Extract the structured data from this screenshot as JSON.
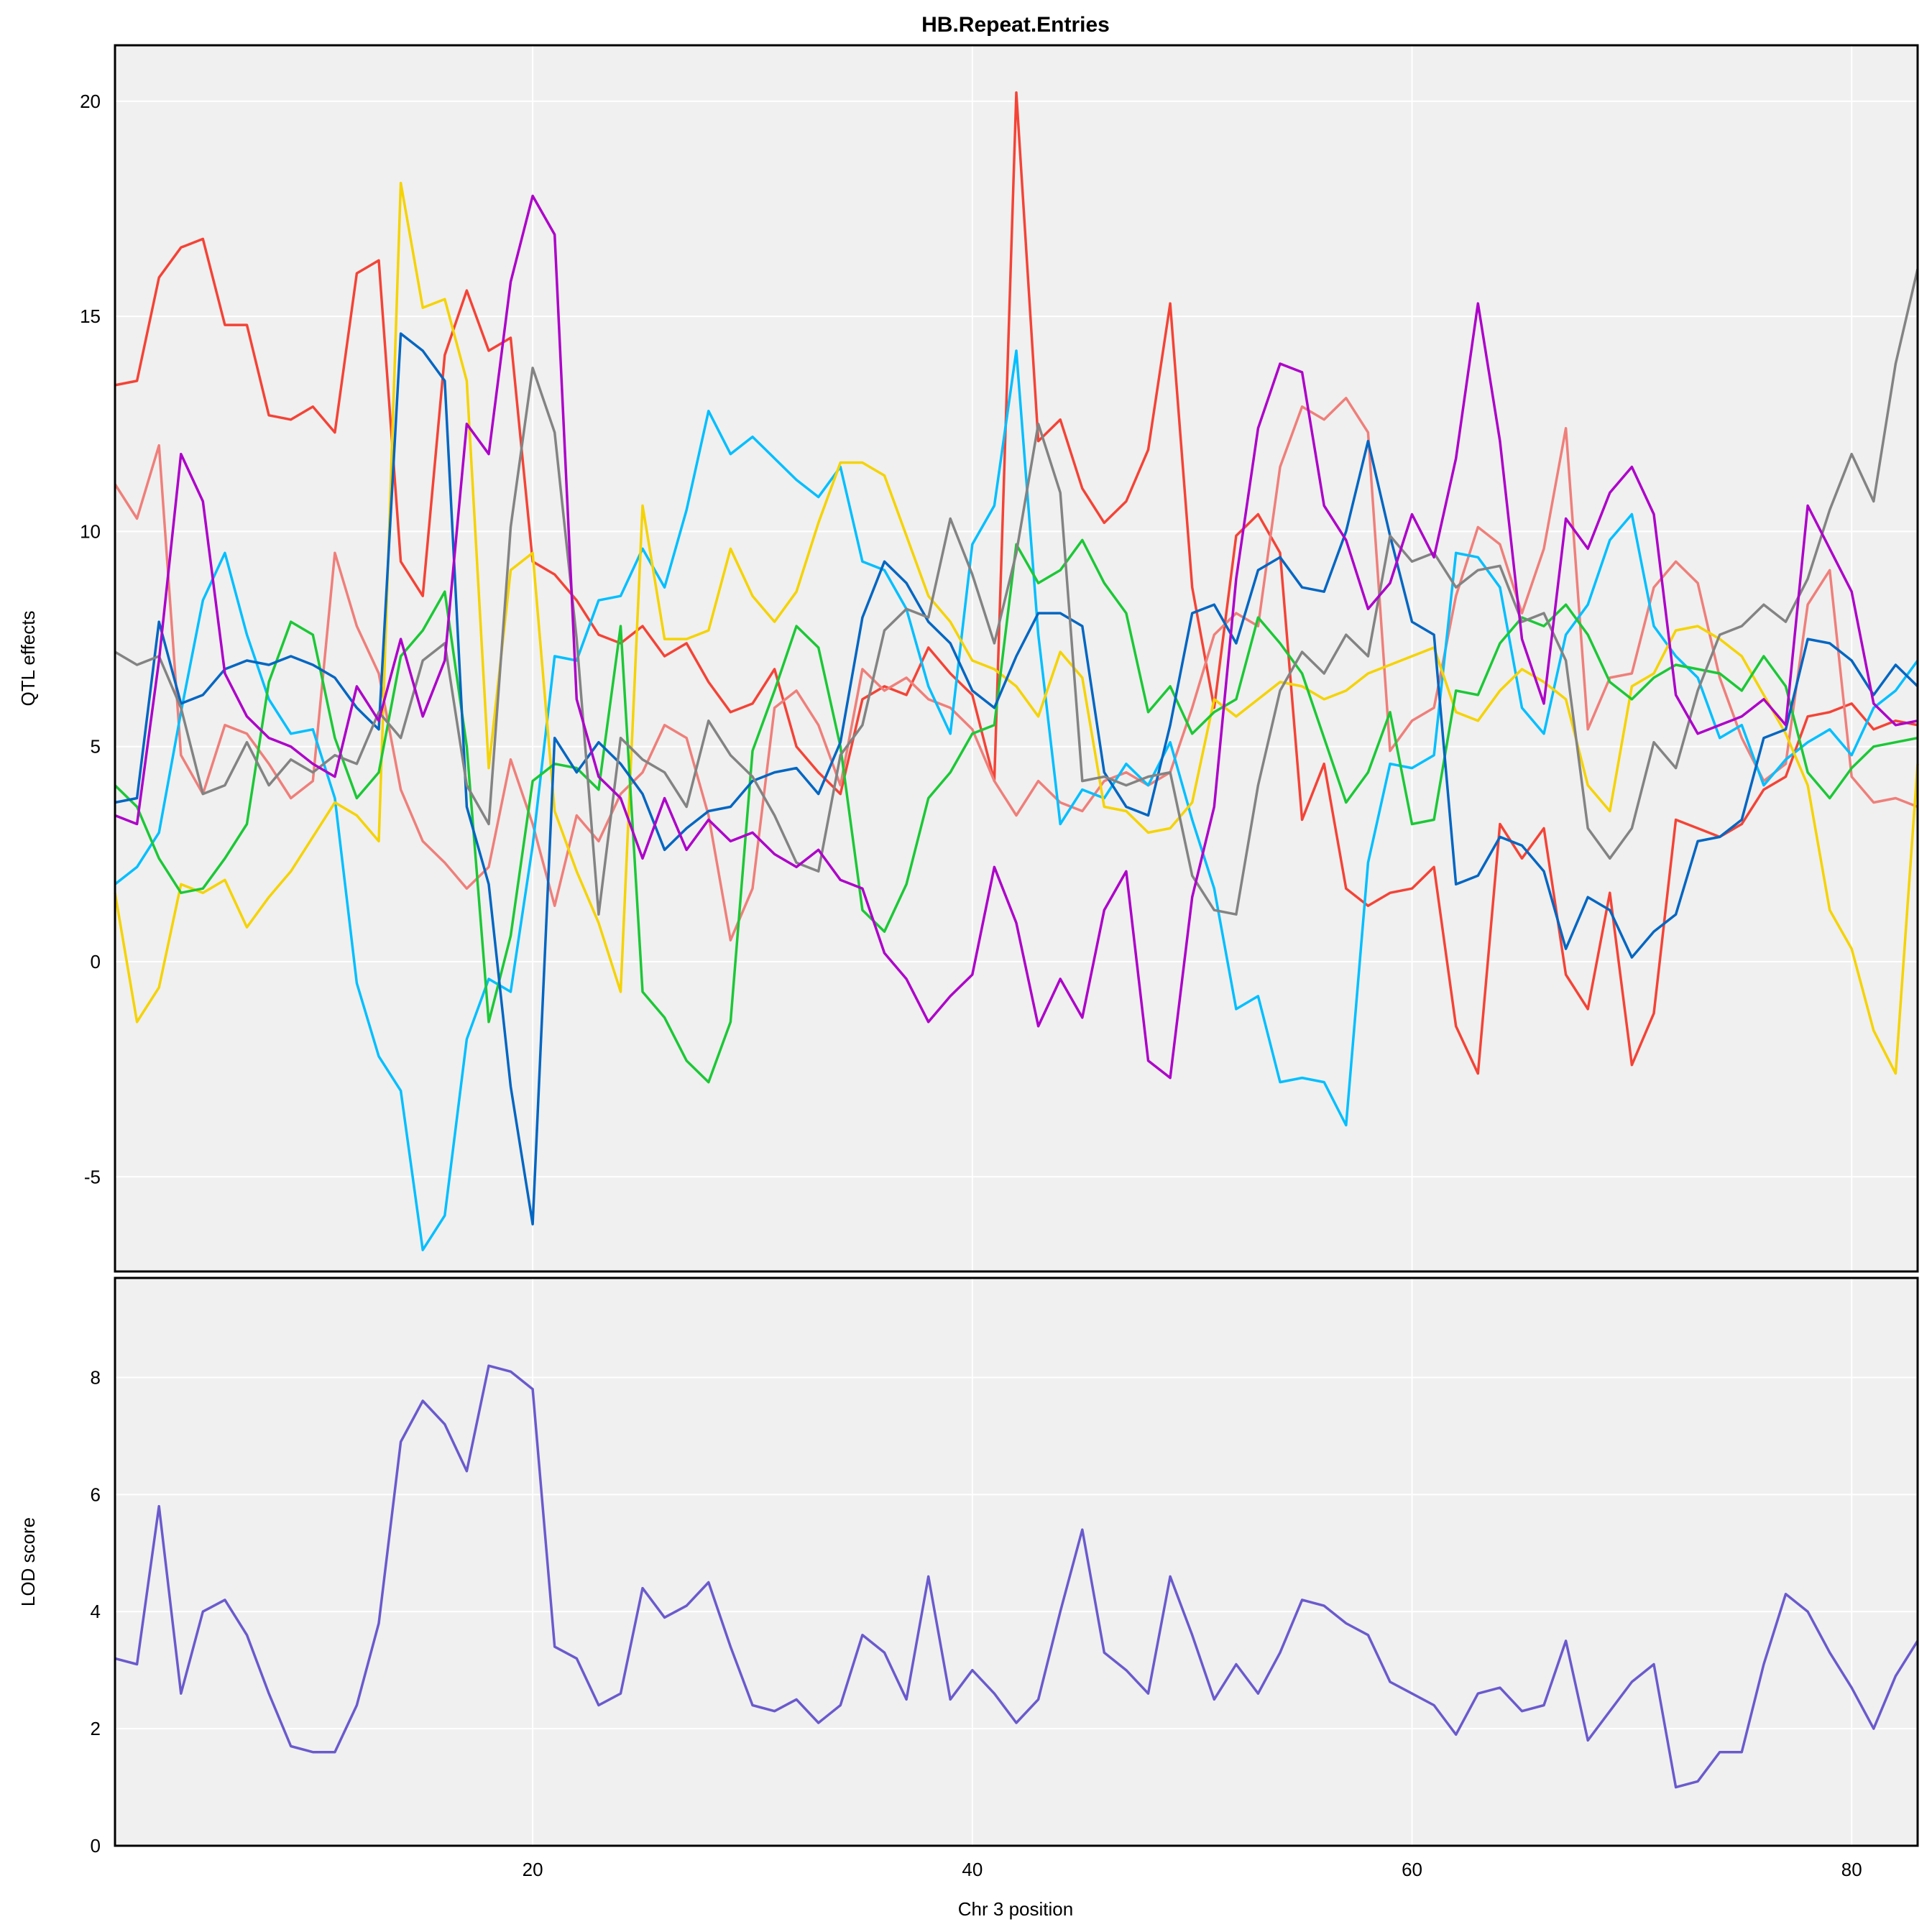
{
  "chart_data": [
    {
      "type": "line",
      "panel": "top",
      "title": "HB.Repeat.Entries",
      "ylabel": "QTL effects",
      "xlabel": "",
      "xlim": [
        1,
        83
      ],
      "ylim": [
        -7.2,
        21.3
      ],
      "x_ticks": [
        20,
        40,
        60,
        80
      ],
      "y_ticks": [
        -5,
        0,
        5,
        10,
        15,
        20
      ],
      "grid": true,
      "background": "#f0f0f0",
      "x": [
        1,
        2,
        3,
        4,
        5,
        6,
        7,
        8,
        9,
        10,
        11,
        12,
        13,
        14,
        15,
        16,
        17,
        18,
        19,
        20,
        21,
        22,
        23,
        24,
        25,
        26,
        27,
        28,
        29,
        30,
        31,
        32,
        33,
        34,
        35,
        36,
        37,
        38,
        39,
        40,
        41,
        42,
        43,
        44,
        45,
        46,
        47,
        48,
        49,
        50,
        51,
        52,
        53,
        54,
        55,
        56,
        57,
        58,
        59,
        60,
        61,
        62,
        63,
        64,
        65,
        66,
        67,
        68,
        69,
        70,
        71,
        72,
        73,
        74,
        75,
        76,
        77,
        78,
        79,
        80,
        81,
        82,
        83
      ],
      "series": [
        {
          "color": "#f44336",
          "values": [
            13.4,
            13.5,
            15.9,
            16.6,
            16.8,
            14.8,
            14.8,
            12.7,
            12.6,
            12.9,
            12.3,
            16.0,
            16.3,
            9.3,
            8.5,
            14.1,
            15.6,
            14.2,
            14.5,
            9.3,
            9.0,
            8.4,
            7.6,
            7.4,
            7.8,
            7.1,
            7.4,
            6.5,
            5.8,
            6.0,
            6.8,
            5.0,
            4.4,
            3.9,
            6.1,
            6.4,
            6.2,
            7.3,
            6.7,
            6.2,
            4.2,
            20.2,
            12.1,
            12.6,
            11.0,
            10.2,
            10.7,
            11.9,
            15.3,
            8.7,
            5.9,
            9.9,
            10.4,
            9.5,
            3.3,
            4.6,
            1.7,
            1.3,
            1.6,
            1.7,
            2.2,
            -1.5,
            -2.6,
            3.2,
            2.4,
            3.1,
            -0.3,
            -1.1,
            1.6,
            -2.4,
            -1.2,
            3.3,
            3.1,
            2.9,
            3.2,
            4.0,
            4.3,
            5.7,
            5.8,
            6.0,
            5.4,
            5.6,
            5.5
          ]
        },
        {
          "color": "#ef7f7a",
          "values": [
            11.1,
            10.3,
            12.0,
            4.8,
            3.9,
            5.5,
            5.3,
            4.6,
            3.8,
            4.2,
            9.5,
            7.8,
            6.7,
            4.0,
            2.8,
            2.3,
            1.7,
            2.2,
            4.7,
            3.2,
            1.3,
            3.4,
            2.8,
            3.9,
            4.4,
            5.5,
            5.2,
            3.4,
            0.5,
            1.7,
            5.9,
            6.3,
            5.5,
            4.1,
            6.8,
            6.3,
            6.6,
            6.1,
            5.9,
            5.4,
            4.2,
            3.4,
            4.2,
            3.7,
            3.5,
            4.2,
            4.4,
            4.1,
            4.4,
            5.9,
            7.6,
            8.1,
            7.8,
            11.5,
            12.9,
            12.6,
            13.1,
            12.3,
            4.9,
            5.6,
            5.9,
            8.5,
            10.1,
            9.7,
            8.1,
            9.6,
            12.4,
            5.4,
            6.6,
            6.7,
            8.7,
            9.3,
            8.8,
            6.6,
            5.2,
            4.2,
            4.6,
            8.3,
            9.1,
            4.3,
            3.7,
            3.8,
            3.6
          ]
        },
        {
          "color": "#00bfff",
          "values": [
            1.8,
            2.2,
            3.0,
            5.8,
            8.4,
            9.5,
            7.6,
            6.1,
            5.3,
            5.4,
            3.8,
            -0.5,
            -2.2,
            -3.0,
            -6.7,
            -5.9,
            -1.8,
            -0.4,
            -0.7,
            2.7,
            7.1,
            7.0,
            8.4,
            8.5,
            9.6,
            8.7,
            10.5,
            12.8,
            11.8,
            12.2,
            11.7,
            11.2,
            10.8,
            11.5,
            9.3,
            9.1,
            8.2,
            6.4,
            5.3,
            9.7,
            10.6,
            14.2,
            7.6,
            3.2,
            4.0,
            3.8,
            4.6,
            4.1,
            5.1,
            3.3,
            1.7,
            -1.1,
            -0.8,
            -2.8,
            -2.7,
            -2.8,
            -3.8,
            2.3,
            4.6,
            4.5,
            4.8,
            9.5,
            9.4,
            8.7,
            5.9,
            5.3,
            7.6,
            8.3,
            9.8,
            10.4,
            7.8,
            7.1,
            6.6,
            5.2,
            5.5,
            4.1,
            4.7,
            5.1,
            5.4,
            4.8,
            5.9,
            6.3,
            7.0
          ]
        },
        {
          "color": "#f5d300",
          "values": [
            1.6,
            -1.4,
            -0.6,
            1.8,
            1.6,
            1.9,
            0.8,
            1.5,
            2.1,
            2.9,
            3.7,
            3.4,
            2.8,
            18.1,
            15.2,
            15.4,
            13.5,
            4.5,
            9.1,
            9.5,
            3.5,
            2.1,
            0.9,
            -0.7,
            10.6,
            7.5,
            7.5,
            7.7,
            9.6,
            8.5,
            7.9,
            8.6,
            10.2,
            11.6,
            11.6,
            11.3,
            9.9,
            8.5,
            7.9,
            7.0,
            6.8,
            6.4,
            5.7,
            7.2,
            6.6,
            3.6,
            3.5,
            3.0,
            3.1,
            3.7,
            6.1,
            5.7,
            6.1,
            6.5,
            6.4,
            6.1,
            6.3,
            6.7,
            6.9,
            7.1,
            7.3,
            5.8,
            5.6,
            6.3,
            6.8,
            6.5,
            6.1,
            4.1,
            3.5,
            6.4,
            6.7,
            7.7,
            7.8,
            7.5,
            7.1,
            6.2,
            5.3,
            4.1,
            1.2,
            0.3,
            -1.6,
            -2.6,
            4.6
          ]
        },
        {
          "color": "#1bc836",
          "values": [
            4.1,
            3.6,
            2.4,
            1.6,
            1.7,
            2.4,
            3.2,
            6.5,
            7.9,
            7.6,
            5.2,
            3.8,
            4.4,
            7.1,
            7.7,
            8.6,
            5.0,
            -1.4,
            0.6,
            4.2,
            4.6,
            4.5,
            4.0,
            7.8,
            -0.7,
            -1.3,
            -2.3,
            -2.8,
            -1.4,
            4.9,
            6.3,
            7.8,
            7.3,
            5.0,
            1.2,
            0.7,
            1.8,
            3.8,
            4.4,
            5.3,
            5.5,
            9.7,
            8.8,
            9.1,
            9.8,
            8.8,
            8.1,
            5.8,
            6.4,
            5.3,
            5.8,
            6.1,
            8.0,
            7.4,
            6.7,
            5.2,
            3.7,
            4.4,
            5.8,
            3.2,
            3.3,
            6.3,
            6.2,
            7.4,
            8.0,
            7.8,
            8.3,
            7.6,
            6.5,
            6.1,
            6.6,
            6.9,
            6.8,
            6.7,
            6.3,
            7.1,
            6.4,
            4.4,
            3.8,
            4.5,
            5.0,
            5.1,
            5.2
          ]
        },
        {
          "color": "#0066c2",
          "values": [
            3.7,
            3.8,
            7.9,
            6.0,
            6.2,
            6.8,
            7.0,
            6.9,
            7.1,
            6.9,
            6.6,
            5.9,
            5.4,
            14.6,
            14.2,
            13.5,
            3.6,
            1.8,
            -2.9,
            -6.1,
            5.2,
            4.4,
            5.1,
            4.6,
            3.9,
            2.6,
            3.1,
            3.5,
            3.6,
            4.2,
            4.4,
            4.5,
            3.9,
            5.1,
            8.0,
            9.3,
            8.8,
            7.9,
            7.4,
            6.3,
            5.9,
            7.1,
            8.1,
            8.1,
            7.8,
            4.4,
            3.6,
            3.4,
            5.5,
            8.1,
            8.3,
            7.4,
            9.1,
            9.4,
            8.7,
            8.6,
            10.0,
            12.1,
            9.9,
            7.9,
            7.6,
            1.8,
            2.0,
            2.9,
            2.7,
            2.1,
            0.3,
            1.5,
            1.2,
            0.1,
            0.7,
            1.1,
            2.8,
            2.9,
            3.3,
            5.2,
            5.4,
            7.5,
            7.4,
            7.0,
            6.2,
            6.9,
            6.4
          ]
        },
        {
          "color": "#838383",
          "values": [
            7.2,
            6.9,
            7.1,
            5.9,
            3.9,
            4.1,
            5.1,
            4.1,
            4.7,
            4.4,
            4.8,
            4.6,
            5.8,
            5.2,
            7.0,
            7.4,
            4.1,
            3.2,
            10.1,
            13.8,
            12.3,
            7.5,
            1.1,
            5.2,
            4.7,
            4.4,
            3.6,
            5.6,
            4.8,
            4.3,
            3.4,
            2.3,
            2.1,
            4.8,
            5.5,
            7.7,
            8.2,
            8.0,
            10.3,
            9.0,
            7.4,
            9.5,
            12.5,
            10.9,
            4.2,
            4.3,
            4.1,
            4.3,
            4.4,
            2.0,
            1.2,
            1.1,
            4.1,
            6.3,
            7.2,
            6.7,
            7.6,
            7.1,
            9.9,
            9.3,
            9.5,
            8.7,
            9.1,
            9.2,
            7.9,
            8.1,
            7.0,
            3.1,
            2.4,
            3.1,
            5.1,
            4.5,
            6.3,
            7.6,
            7.8,
            8.3,
            7.9,
            8.9,
            10.5,
            11.8,
            10.7,
            13.9,
            16.1
          ]
        },
        {
          "color": "#ad00c9",
          "values": [
            3.4,
            3.2,
            7.0,
            11.8,
            10.7,
            6.7,
            5.7,
            5.2,
            5.0,
            4.6,
            4.3,
            6.4,
            5.6,
            7.5,
            5.7,
            7.0,
            12.5,
            11.8,
            15.8,
            17.8,
            16.9,
            6.1,
            4.3,
            3.8,
            2.4,
            3.8,
            2.6,
            3.3,
            2.8,
            3.0,
            2.5,
            2.2,
            2.6,
            1.9,
            1.7,
            0.2,
            -0.4,
            -1.4,
            -0.8,
            -0.3,
            2.2,
            0.9,
            -1.5,
            -0.4,
            -1.3,
            1.2,
            2.1,
            -2.3,
            -2.7,
            1.5,
            3.6,
            8.9,
            12.4,
            13.9,
            13.7,
            10.6,
            9.8,
            8.2,
            8.8,
            10.4,
            9.4,
            11.7,
            15.3,
            12.1,
            7.5,
            6.0,
            10.3,
            9.6,
            10.9,
            11.5,
            10.4,
            6.2,
            5.3,
            5.5,
            5.7,
            6.1,
            5.5,
            10.6,
            9.6,
            8.6,
            6.0,
            5.5,
            5.6
          ]
        }
      ]
    },
    {
      "type": "line",
      "panel": "bottom",
      "title": "",
      "ylabel": "LOD score",
      "xlabel": "Chr 3 position",
      "xlim": [
        1,
        83
      ],
      "ylim": [
        0,
        9.7
      ],
      "x_ticks": [
        20,
        40,
        60,
        80
      ],
      "y_ticks": [
        0,
        2,
        4,
        6,
        8
      ],
      "grid": true,
      "background": "#f0f0f0",
      "x": [
        1,
        2,
        3,
        4,
        5,
        6,
        7,
        8,
        9,
        10,
        11,
        12,
        13,
        14,
        15,
        16,
        17,
        18,
        19,
        20,
        21,
        22,
        23,
        24,
        25,
        26,
        27,
        28,
        29,
        30,
        31,
        32,
        33,
        34,
        35,
        36,
        37,
        38,
        39,
        40,
        41,
        42,
        43,
        44,
        45,
        46,
        47,
        48,
        49,
        50,
        51,
        52,
        53,
        54,
        55,
        56,
        57,
        58,
        59,
        60,
        61,
        62,
        63,
        64,
        65,
        66,
        67,
        68,
        69,
        70,
        71,
        72,
        73,
        74,
        75,
        76,
        77,
        78,
        79,
        80,
        81,
        82,
        83
      ],
      "series": [
        {
          "color": "#6a5acd",
          "values": [
            3.2,
            3.1,
            5.8,
            2.6,
            4.0,
            4.2,
            3.6,
            2.6,
            1.7,
            1.6,
            1.6,
            2.4,
            3.8,
            6.9,
            7.6,
            7.2,
            6.4,
            8.2,
            8.1,
            7.8,
            3.4,
            3.2,
            2.4,
            2.6,
            4.4,
            3.9,
            4.1,
            4.5,
            3.4,
            2.4,
            2.3,
            2.5,
            2.1,
            2.4,
            3.6,
            3.3,
            2.5,
            4.6,
            2.5,
            3.0,
            2.6,
            2.1,
            2.5,
            4.0,
            5.4,
            3.3,
            3.0,
            2.6,
            4.6,
            3.6,
            2.5,
            3.1,
            2.6,
            3.3,
            4.2,
            4.1,
            3.8,
            3.6,
            2.8,
            2.6,
            2.4,
            1.9,
            2.6,
            2.7,
            2.3,
            2.4,
            3.5,
            1.8,
            2.3,
            2.8,
            3.1,
            1.0,
            1.1,
            1.6,
            1.6,
            3.1,
            4.3,
            4.0,
            3.3,
            2.7,
            2.0,
            2.9,
            3.5
          ]
        }
      ]
    }
  ]
}
